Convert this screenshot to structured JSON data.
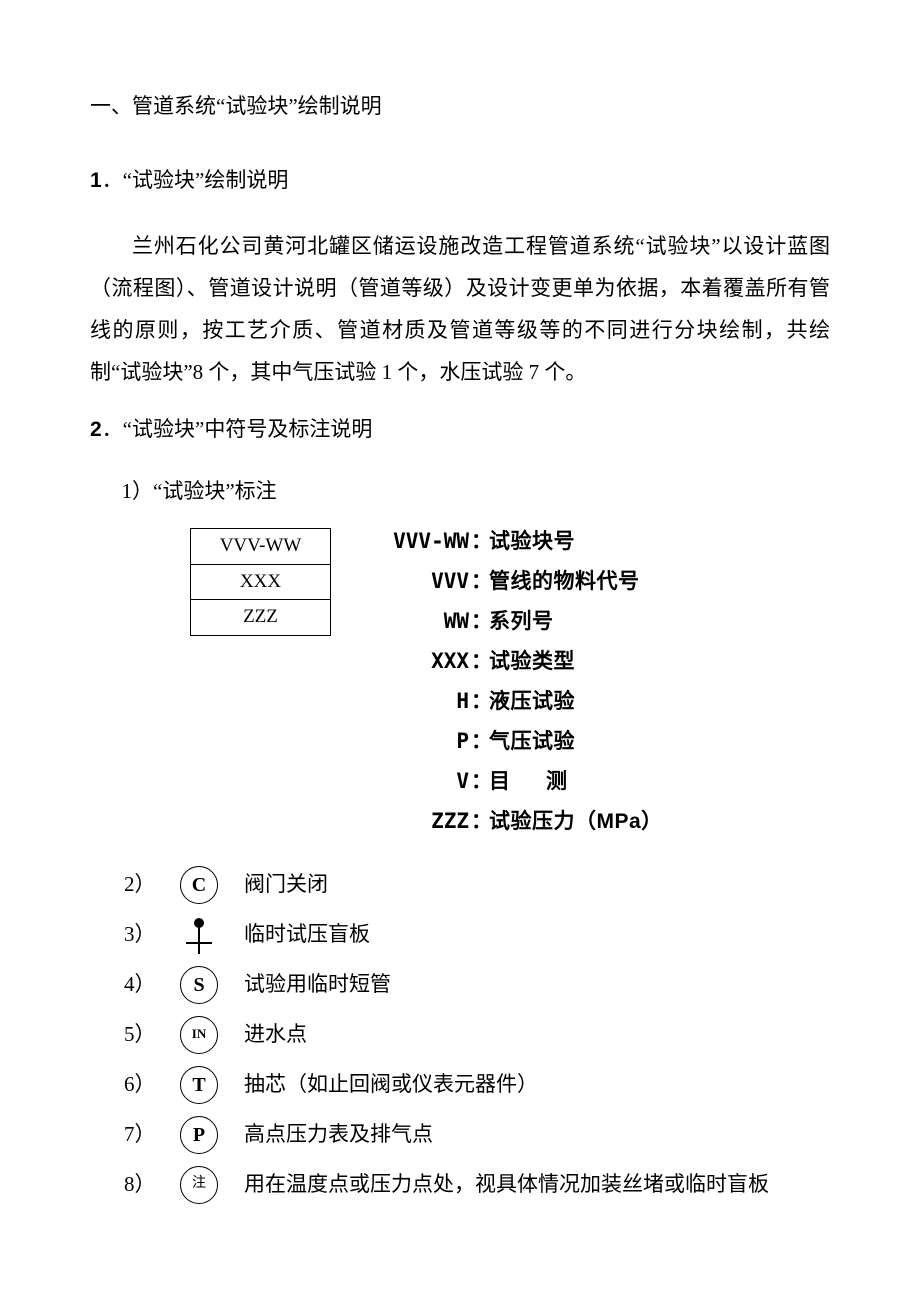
{
  "colors": {
    "text": "#000000",
    "background": "#ffffff",
    "border": "#000000"
  },
  "title": "一、管道系统“试验块”绘制说明",
  "section1": {
    "num": "1",
    "heading": "．“试验块”绘制说明",
    "paragraph": "兰州石化公司黄河北罐区储运设施改造工程管道系统“试验块”以设计蓝图（流程图）、管道设计说明（管道等级）及设计变更单为依据，本着覆盖所有管线的原则，按工艺介质、管道材质及管道等级等的不同进行分块绘制，共绘制“试验块”8 个，其中气压试验 1 个，水压试验 7 个。"
  },
  "section2": {
    "num": "2",
    "heading": "．“试验块”中符号及标注说明",
    "item1": "1）“试验块”标注",
    "block_cells": [
      "VVV-WW",
      "XXX",
      "ZZZ"
    ],
    "legend": [
      {
        "key": "VVV-WW",
        "val": "试验块号"
      },
      {
        "key": "VVV",
        "val": "管线的物料代号"
      },
      {
        "key": "WW",
        "val": "系列号"
      },
      {
        "key": "XXX",
        "val": "试验类型"
      },
      {
        "key": "H",
        "val": "液压试验"
      },
      {
        "key": "P",
        "val": "气压试验"
      },
      {
        "key": "V",
        "val": "目测",
        "spaced": true
      },
      {
        "key": "ZZZ",
        "val": "试验压力（MPa）"
      }
    ],
    "symbols": [
      {
        "num": "2）",
        "icon": "circle",
        "letter": "C",
        "desc": "阀门关闭"
      },
      {
        "num": "3）",
        "icon": "blind",
        "letter": "",
        "desc": "临时试压盲板"
      },
      {
        "num": "4）",
        "icon": "circle",
        "letter": "S",
        "desc": "试验用临时短管"
      },
      {
        "num": "5）",
        "icon": "circle",
        "letter": "IN",
        "small": true,
        "desc": "进水点"
      },
      {
        "num": "6）",
        "icon": "circle",
        "letter": "T",
        "desc": "抽芯（如止回阀或仪表元器件）"
      },
      {
        "num": "7）",
        "icon": "circle",
        "letter": "P",
        "desc": "高点压力表及排气点"
      },
      {
        "num": "8）",
        "icon": "circle",
        "letter": "注",
        "cn": true,
        "desc": "用在温度点或压力点处，视具体情况加装丝堵或临时盲板"
      }
    ]
  }
}
